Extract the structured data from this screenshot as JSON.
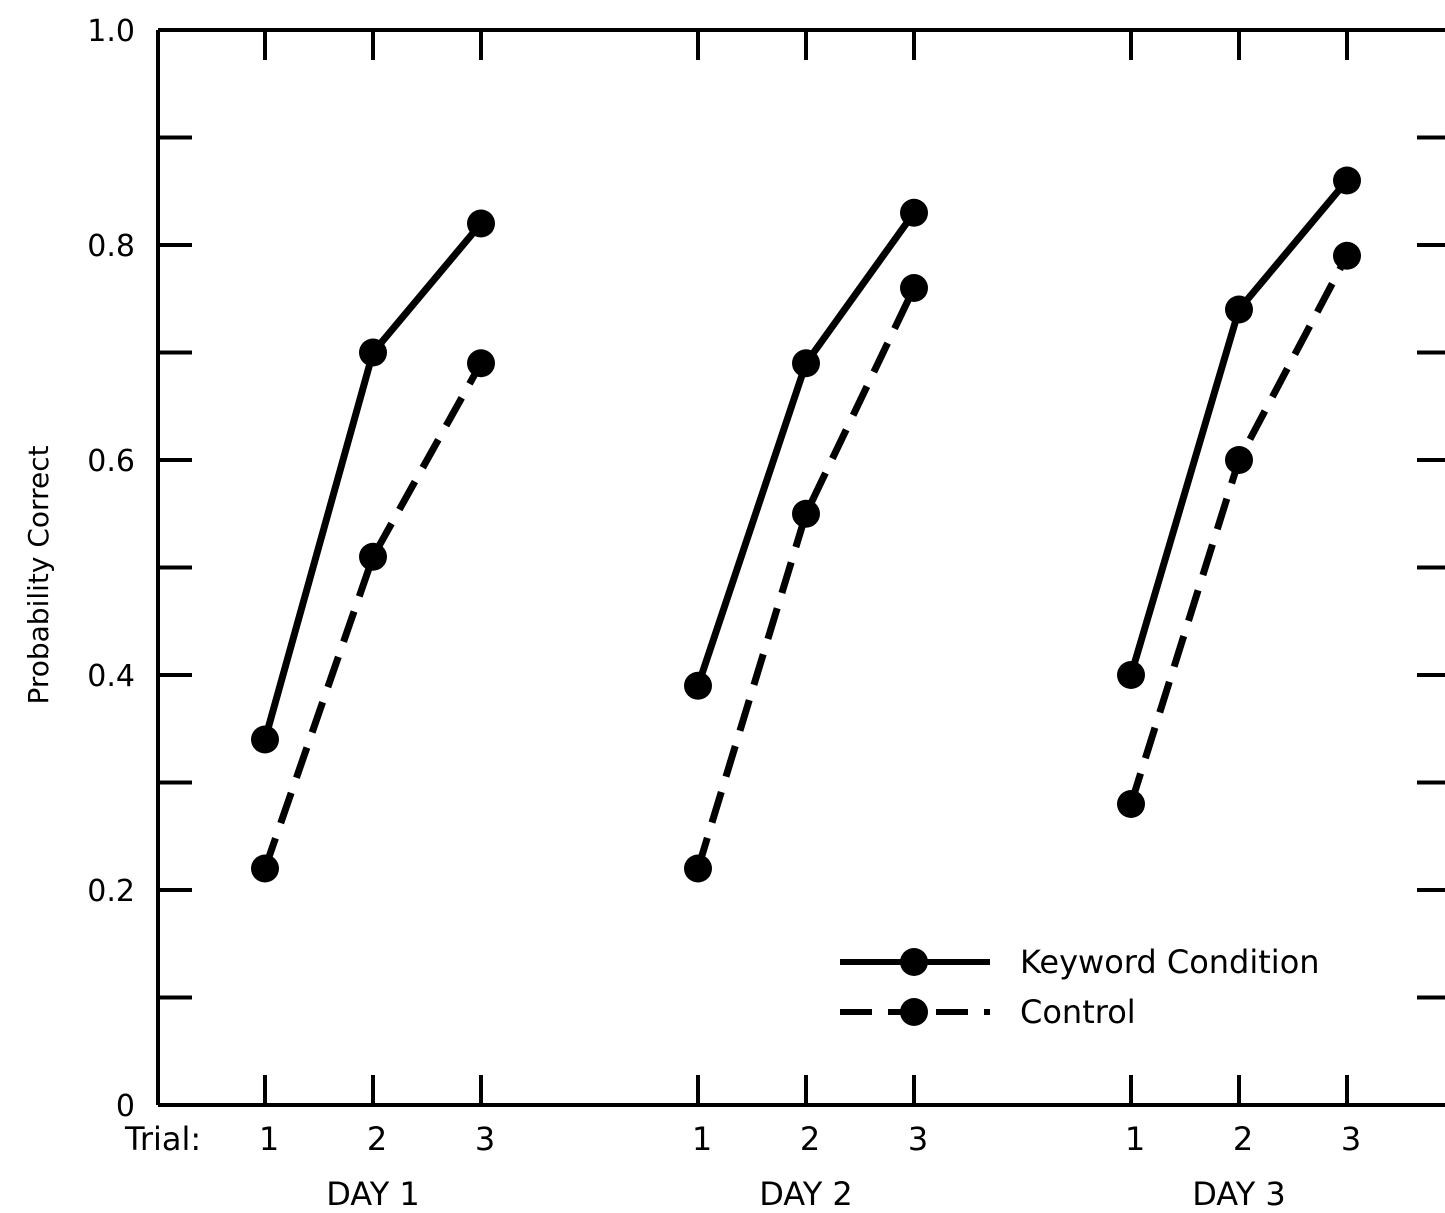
{
  "chart_data": {
    "type": "line",
    "title": "",
    "xlabel_prefix": "Trial:",
    "ylabel": "Probability Correct",
    "ylim": [
      0,
      1.0
    ],
    "y_ticks_labeled": [
      "0",
      "0.2",
      "0.4",
      "0.6",
      "0.8",
      "1.0"
    ],
    "y_ticks_minor": [
      0.1,
      0.3,
      0.5,
      0.7,
      0.9
    ],
    "groups": [
      {
        "label": "DAY 1",
        "trials": [
          "1",
          "2",
          "3"
        ]
      },
      {
        "label": "DAY 2",
        "trials": [
          "1",
          "2",
          "3"
        ]
      },
      {
        "label": "DAY 3",
        "trials": [
          "1",
          "2",
          "3"
        ]
      }
    ],
    "series": [
      {
        "name": "Keyword Condition",
        "style": "solid",
        "values": [
          [
            0.34,
            0.7,
            0.82
          ],
          [
            0.39,
            0.69,
            0.83
          ],
          [
            0.4,
            0.74,
            0.86
          ]
        ]
      },
      {
        "name": "Control",
        "style": "dashed",
        "values": [
          [
            0.22,
            0.51,
            0.69
          ],
          [
            0.22,
            0.55,
            0.76
          ],
          [
            0.28,
            0.6,
            0.79
          ]
        ]
      }
    ],
    "legend_position": "bottom-right",
    "grid": false
  }
}
